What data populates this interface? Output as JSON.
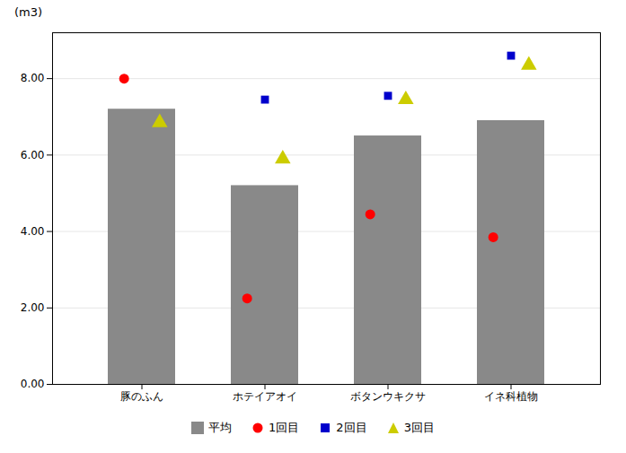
{
  "chart_data": {
    "type": "bar",
    "ylabel": "(m3)",
    "categories": [
      "豚のふん",
      "ホテイアオイ",
      "ボタンウキクサ",
      "イネ科植物"
    ],
    "series": [
      {
        "name": "平均",
        "type": "bar",
        "color": "#898989",
        "values": [
          7.2,
          5.2,
          6.5,
          6.9
        ]
      },
      {
        "name": "1回目",
        "type": "scatter",
        "marker": "circle",
        "color": "#ff0000",
        "values": [
          8.0,
          2.25,
          4.45,
          3.85
        ]
      },
      {
        "name": "2回目",
        "type": "scatter",
        "marker": "square",
        "color": "#0000cc",
        "values": [
          null,
          7.45,
          7.55,
          8.6
        ]
      },
      {
        "name": "3回目",
        "type": "scatter",
        "marker": "triangle",
        "color": "#cccc00",
        "values": [
          6.85,
          5.9,
          7.45,
          8.35
        ]
      }
    ],
    "ylim": [
      0,
      9.2
    ],
    "yticks": [
      {
        "value": 0.0,
        "label": "0.00"
      },
      {
        "value": 2.0,
        "label": "2.00"
      },
      {
        "value": 4.0,
        "label": "4.00"
      },
      {
        "value": 6.0,
        "label": "6.00"
      },
      {
        "value": 8.0,
        "label": "8.00"
      }
    ],
    "grid": true,
    "legend": "bottom"
  }
}
